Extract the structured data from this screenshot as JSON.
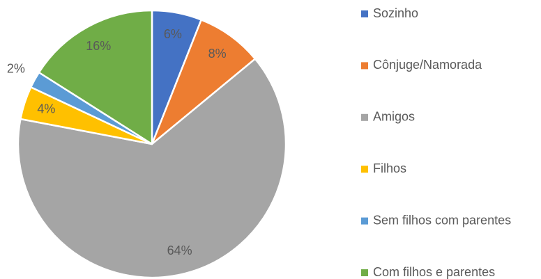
{
  "chart_data": {
    "type": "pie",
    "categories": [
      "Sozinho",
      "Cônjuge/Namorada",
      "Amigos",
      "Filhos",
      "Sem filhos com parentes",
      "Com filhos e parentes"
    ],
    "values": [
      6,
      8,
      64,
      4,
      2,
      16
    ],
    "value_labels": [
      "6%",
      "8%",
      "64%",
      "4%",
      "2%",
      "16%"
    ],
    "colors": [
      "#4472c4",
      "#ed7d31",
      "#a5a5a5",
      "#ffc000",
      "#5b9bd5",
      "#70ad47"
    ],
    "legend": "right"
  }
}
